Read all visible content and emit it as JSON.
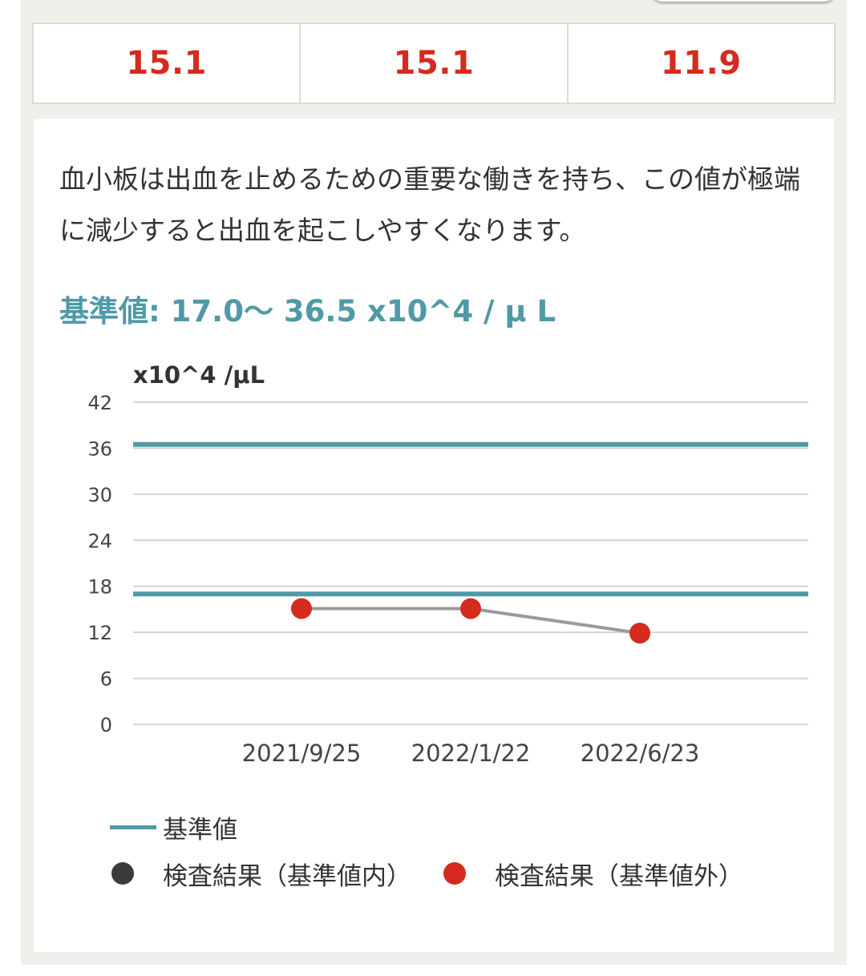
{
  "values_table": {
    "values": [
      "15.1",
      "15.1",
      "11.9"
    ]
  },
  "description": "血小板は出血を止めるための重要な働きを持ち、この値が極端に減少すると出血を起こしやすくなります。",
  "reference_heading": "基準値: 17.0〜 36.5 x10^4 / μ L",
  "legend": {
    "reference": "基準値",
    "in_range": "検査結果（基準値内）",
    "out_of_range": "検査結果（基準値外）"
  },
  "colors": {
    "reference_line": "#4f9aa6",
    "in_range_point": "#3b3b3b",
    "out_of_range_point": "#d52b1e",
    "connector": "#9a9a9a",
    "grid": "#d4d4d4"
  },
  "chart_data": {
    "type": "line",
    "ylabel": "x10^4 /μL",
    "xlabel": "",
    "ylim": [
      0,
      42
    ],
    "yticks": [
      0,
      6,
      12,
      18,
      24,
      30,
      36,
      42
    ],
    "categories": [
      "2021/9/25",
      "2022/1/22",
      "2022/6/23"
    ],
    "series": [
      {
        "values": [
          15.1,
          15.1,
          11.9
        ]
      }
    ],
    "reference_range": [
      17.0,
      36.5
    ],
    "grid": true,
    "legend_position": "bottom"
  }
}
